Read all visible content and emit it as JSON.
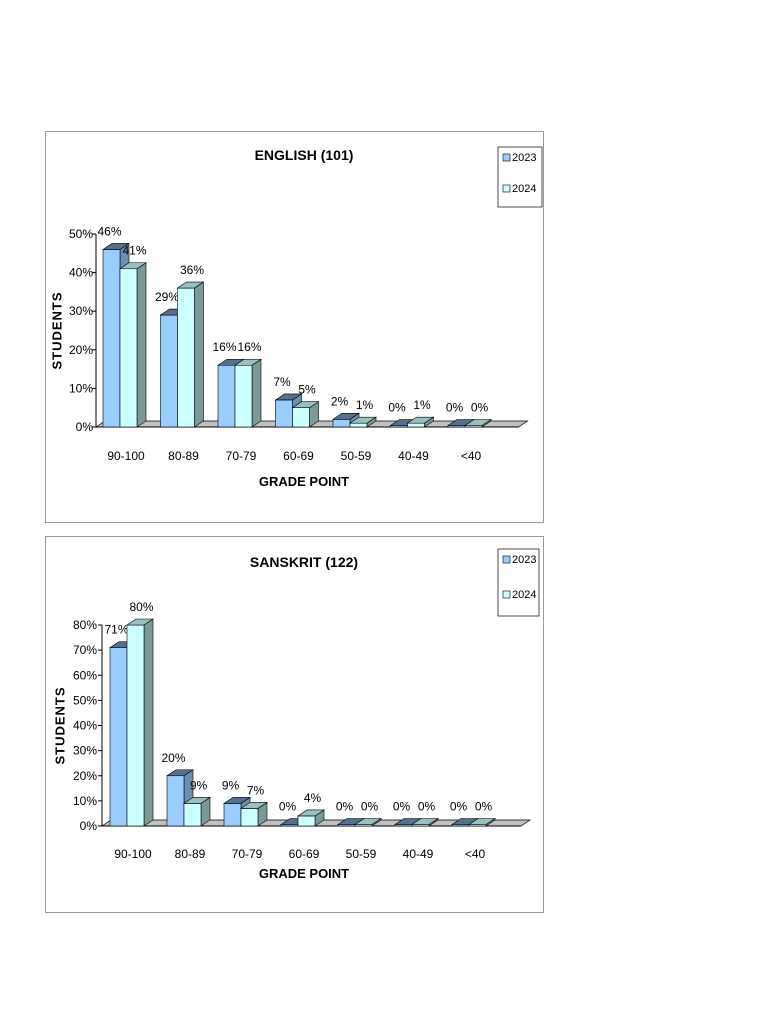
{
  "chart_data": [
    {
      "type": "bar",
      "title": "ENGLISH (101)",
      "xlabel": "GRADE POINT",
      "ylabel": "STUDENTS",
      "categories": [
        "90-100",
        "80-89",
        "70-79",
        "60-69",
        "50-59",
        "40-49",
        "<40"
      ],
      "series": [
        {
          "name": "2023",
          "values": [
            46,
            29,
            16,
            7,
            2,
            0,
            0
          ],
          "labels": [
            "46%",
            "29%",
            "16%",
            "7%",
            "2%",
            "0%",
            "0%"
          ],
          "color": "#99ccff"
        },
        {
          "name": "2024",
          "values": [
            41,
            36,
            16,
            5,
            1,
            1,
            0
          ],
          "labels": [
            "41%",
            "36%",
            "16%",
            "5%",
            "1%",
            "1%",
            "0%"
          ],
          "color": "#ccffff"
        }
      ],
      "ylim": [
        0,
        50
      ],
      "yticks": [
        "0%",
        "10%",
        "20%",
        "30%",
        "40%",
        "50%"
      ],
      "legend": "top-right",
      "grid": false
    },
    {
      "type": "bar",
      "title": "SANSKRIT (122)",
      "xlabel": "GRADE POINT",
      "ylabel": "STUDENTS",
      "categories": [
        "90-100",
        "80-89",
        "70-79",
        "60-69",
        "50-59",
        "40-49",
        "<40"
      ],
      "series": [
        {
          "name": "2023",
          "values": [
            71,
            20,
            9,
            0,
            0,
            0,
            0
          ],
          "labels": [
            "71%",
            "20%",
            "9%",
            "0%",
            "0%",
            "0%",
            "0%"
          ],
          "color": "#99ccff"
        },
        {
          "name": "2024",
          "values": [
            80,
            9,
            7,
            4,
            0,
            0,
            0
          ],
          "labels": [
            "80%",
            "9%",
            "7%",
            "4%",
            "0%",
            "0%",
            "0%"
          ],
          "color": "#ccffff"
        }
      ],
      "ylim": [
        0,
        80
      ],
      "yticks": [
        "0%",
        "10%",
        "20%",
        "30%",
        "40%",
        "50%",
        "60%",
        "70%",
        "80%"
      ],
      "legend": "top-right",
      "grid": false
    }
  ]
}
